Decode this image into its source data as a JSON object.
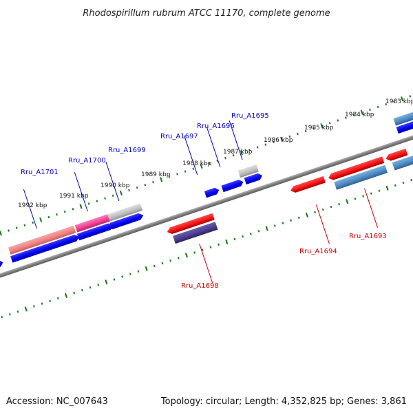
{
  "title": "Rhodospirillum rubrum ATCC 11170, complete genome",
  "footer": {
    "accession": "Accession: NC_007643",
    "summary": "Topology: circular; Length: 4,352,825 bp; Genes: 3,861"
  },
  "colors": {
    "backbone": "#808080",
    "tick": "#1a7a1a",
    "forward_label": "#0000cc",
    "reverse_label": "#cc0000",
    "blue": "#0000ee",
    "red": "#ee1111",
    "pink": "#ef4f9a",
    "salmon": "#f08080",
    "grey": "#bdbdbd",
    "steel": "#4b88c2",
    "indigo": "#4b3c8c"
  },
  "scale": {
    "tick_labels": [
      "1992 kbp",
      "1991 kbp",
      "1990 kbp",
      "1989 kbp",
      "1988 kbp",
      "1987 kbp",
      "1986 kbp",
      "1985 kbp",
      "1984 kbp",
      "1983 kbp"
    ]
  },
  "genes_upper": [
    {
      "label": "Rru_A1701",
      "strand": "forward"
    },
    {
      "label": "Rru_A1700",
      "strand": "forward"
    },
    {
      "label": "Rru_A1699",
      "strand": "forward"
    },
    {
      "label": "Rru_A1697",
      "strand": "forward"
    },
    {
      "label": "Rru_A1696",
      "strand": "forward"
    },
    {
      "label": "Rru_A1695",
      "strand": "forward"
    }
  ],
  "genes_lower": [
    {
      "label": "Rru_A1698",
      "strand": "reverse"
    },
    {
      "label": "Rru_A1694",
      "strand": "reverse"
    },
    {
      "label": "Rru_A1693",
      "strand": "reverse"
    }
  ]
}
